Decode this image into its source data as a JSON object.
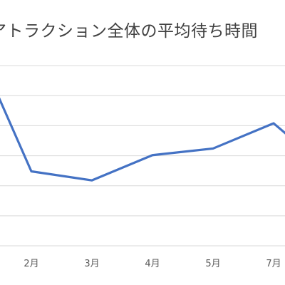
{
  "chart_data": {
    "type": "line",
    "title": "アトラクション全体の平均待ち時間",
    "xlabel": "",
    "ylabel": "",
    "categories": [
      "2月",
      "3月",
      "4月",
      "5月",
      "7月"
    ],
    "series": [
      {
        "values": [
          124,
          109,
          151,
          162,
          204
        ],
        "color": "#4472C4"
      }
    ],
    "ylim": [
      0,
      350
    ],
    "grid": true,
    "legend": "none",
    "gridline_color": "#d9d9d9",
    "axis_label_color": "#595959"
  }
}
